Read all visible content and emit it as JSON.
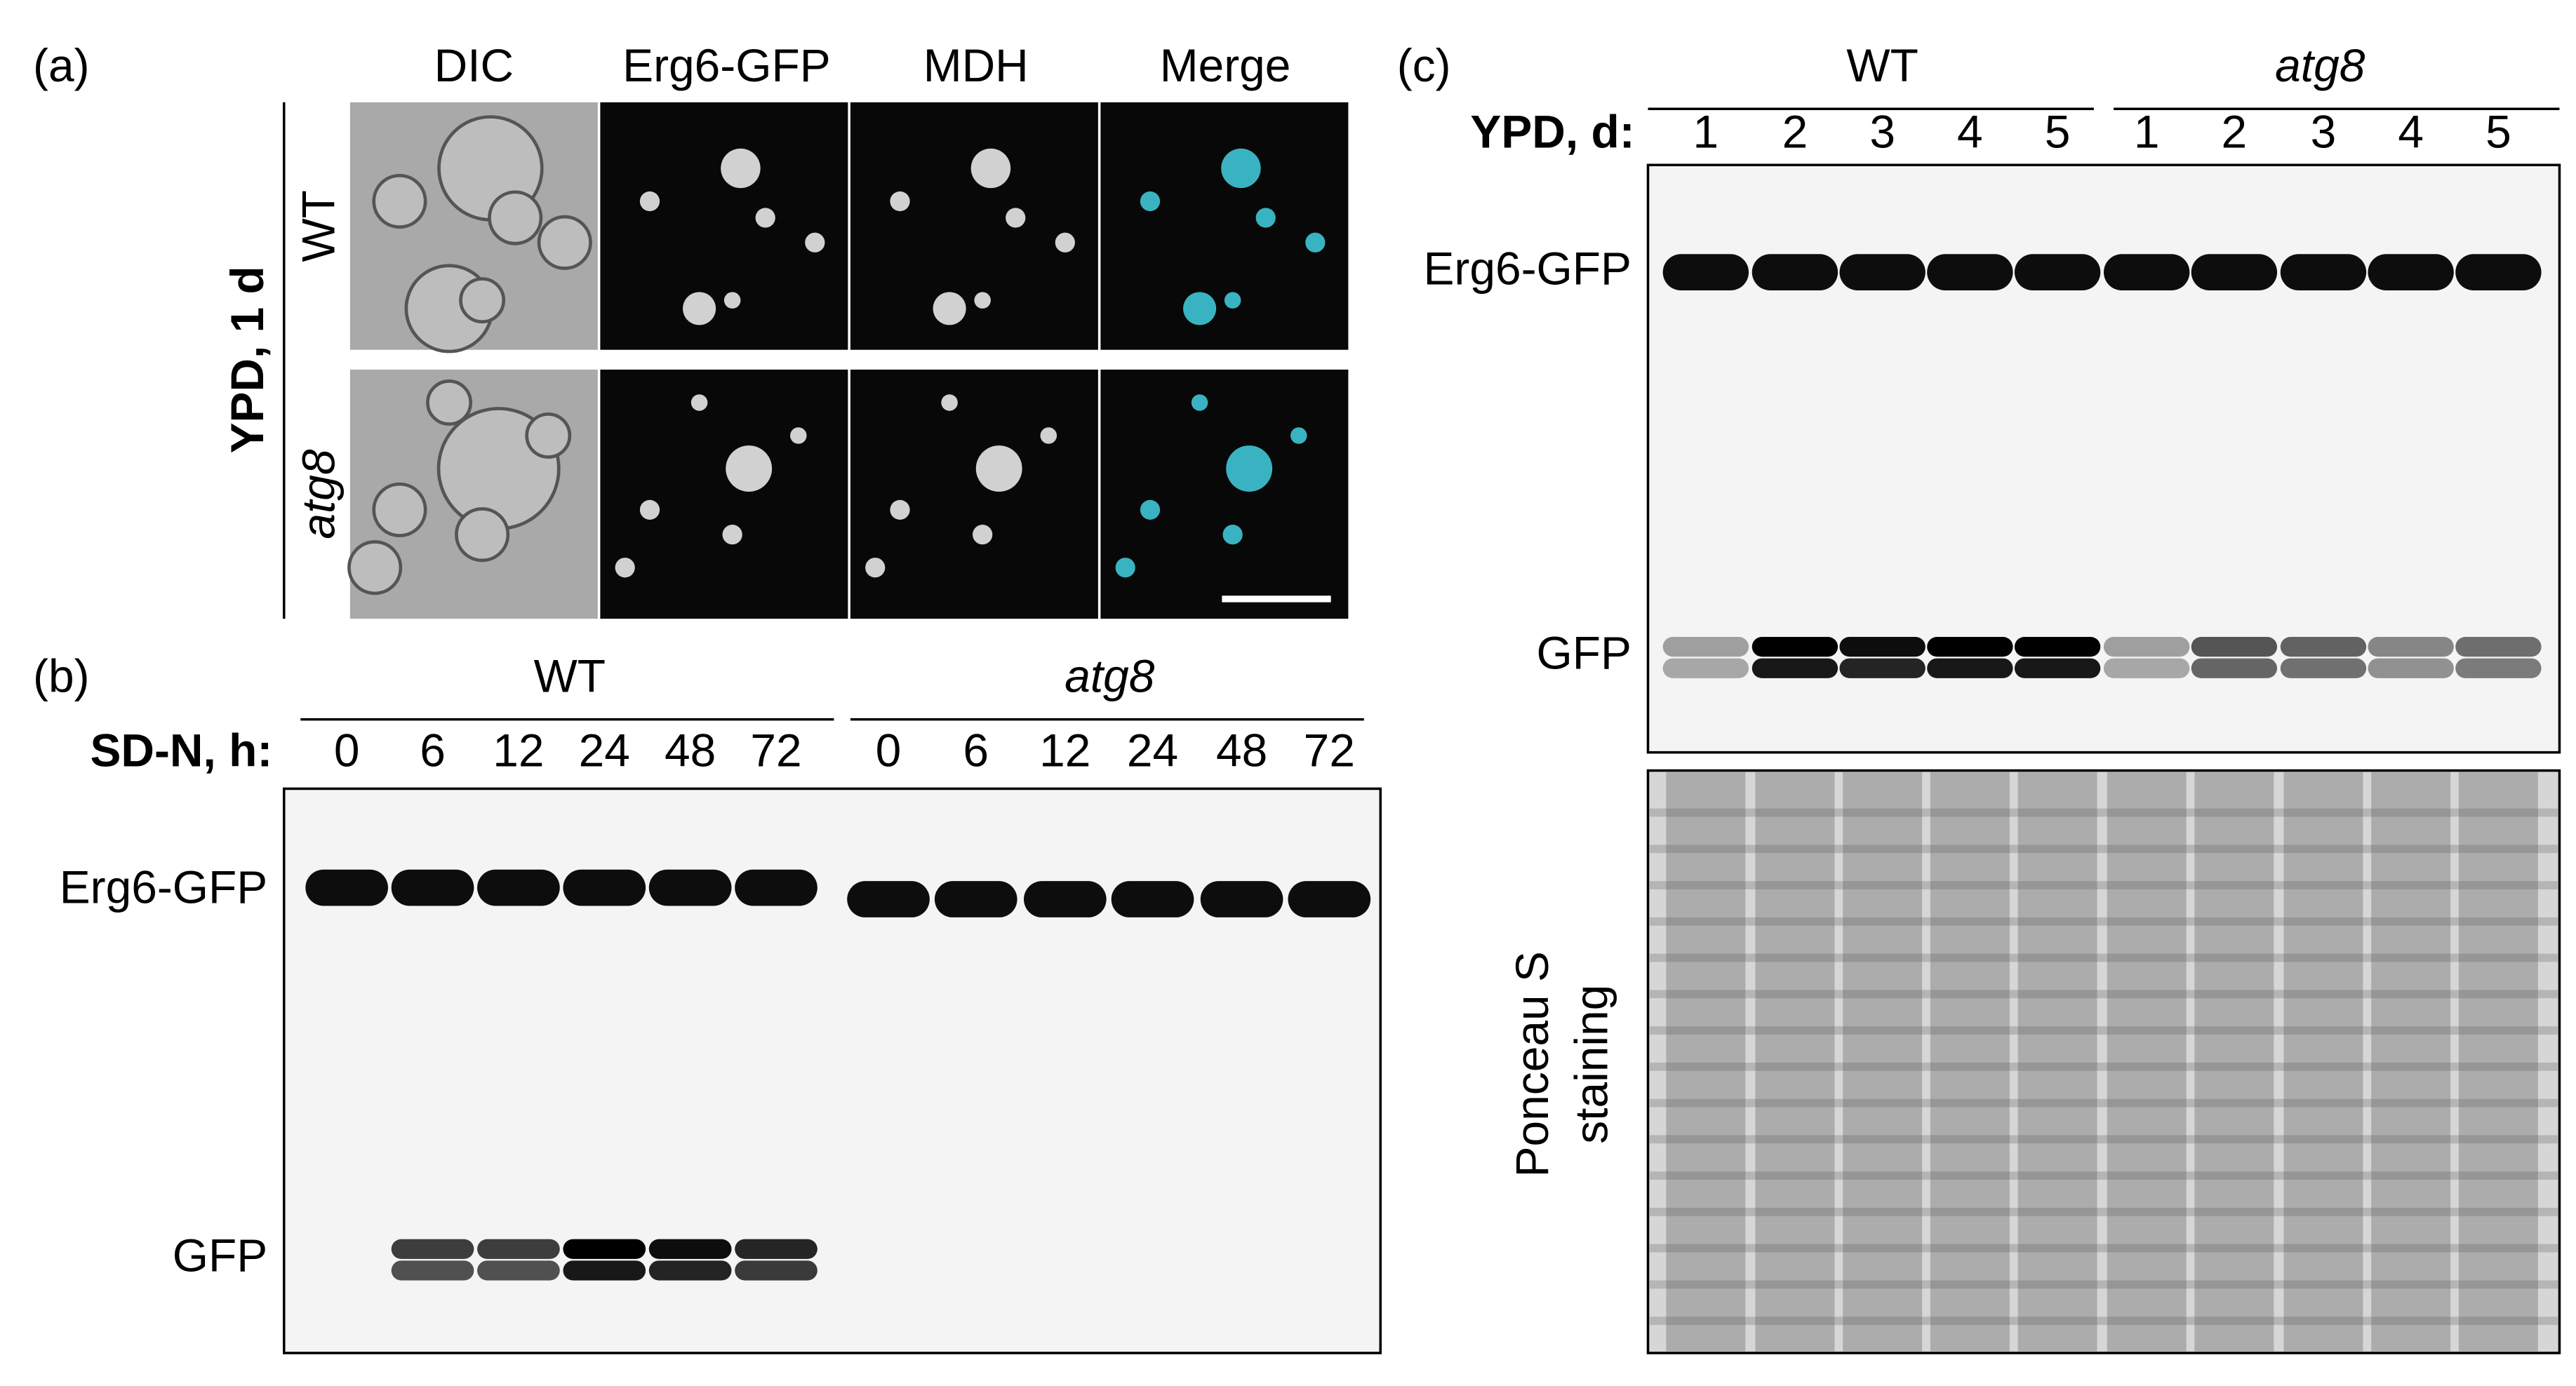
{
  "panel_a": {
    "label": "(a)",
    "columns": [
      "DIC",
      "Erg6-GFP",
      "MDH",
      "Merge"
    ],
    "row_group": "YPD, 1 d",
    "rows": [
      "WT",
      "atg8"
    ]
  },
  "panel_b": {
    "label": "(b)",
    "lane_header": "SD-N, h:",
    "groups": [
      {
        "name": "WT",
        "lanes": [
          "0",
          "6",
          "12",
          "24",
          "48",
          "72"
        ]
      },
      {
        "name": "atg8",
        "lanes": [
          "0",
          "6",
          "12",
          "24",
          "48",
          "72"
        ]
      }
    ],
    "bands": [
      "Erg6-GFP",
      "GFP"
    ]
  },
  "panel_c": {
    "label": "(c)",
    "lane_header": "YPD, d:",
    "groups": [
      {
        "name": "WT",
        "lanes": [
          "1",
          "2",
          "3",
          "4",
          "5"
        ]
      },
      {
        "name": "atg8",
        "lanes": [
          "1",
          "2",
          "3",
          "4",
          "5"
        ]
      }
    ],
    "bands": [
      "Erg6-GFP",
      "GFP"
    ],
    "stain": [
      "Ponceau S",
      "staining"
    ]
  }
}
